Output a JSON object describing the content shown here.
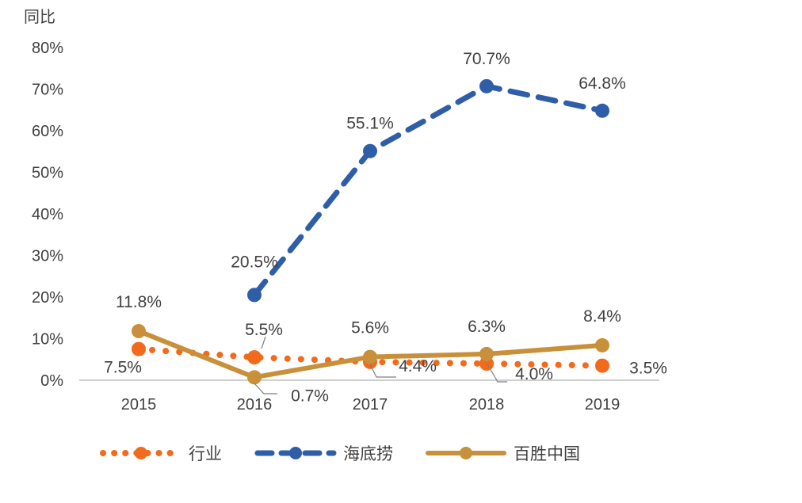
{
  "chart_data": {
    "type": "line",
    "ylabel": "同比",
    "categories": [
      "2015",
      "2016",
      "2017",
      "2018",
      "2019"
    ],
    "ylim": [
      0,
      80
    ],
    "yticks": [
      "0%",
      "10%",
      "20%",
      "30%",
      "40%",
      "50%",
      "60%",
      "70%",
      "80%"
    ],
    "grid": false,
    "legend_position": "bottom",
    "series": [
      {
        "name": "行业",
        "values": [
          7.5,
          5.5,
          4.4,
          4.0,
          3.5
        ],
        "labels": [
          "7.5%",
          "5.5%",
          "4.4%",
          "4.0%",
          "3.5%"
        ],
        "color": "#f26a1b",
        "style": "dotted"
      },
      {
        "name": "海底捞",
        "values": [
          null,
          20.5,
          55.1,
          70.7,
          64.8
        ],
        "labels": [
          "",
          "20.5%",
          "55.1%",
          "70.7%",
          "64.8%"
        ],
        "color": "#2e5ea8",
        "style": "dashed"
      },
      {
        "name": "百胜中国",
        "values": [
          11.8,
          0.7,
          5.6,
          6.3,
          8.4
        ],
        "labels": [
          "11.8%",
          "0.7%",
          "5.6%",
          "6.3%",
          "8.4%"
        ],
        "color": "#c8903a",
        "style": "solid"
      }
    ]
  }
}
